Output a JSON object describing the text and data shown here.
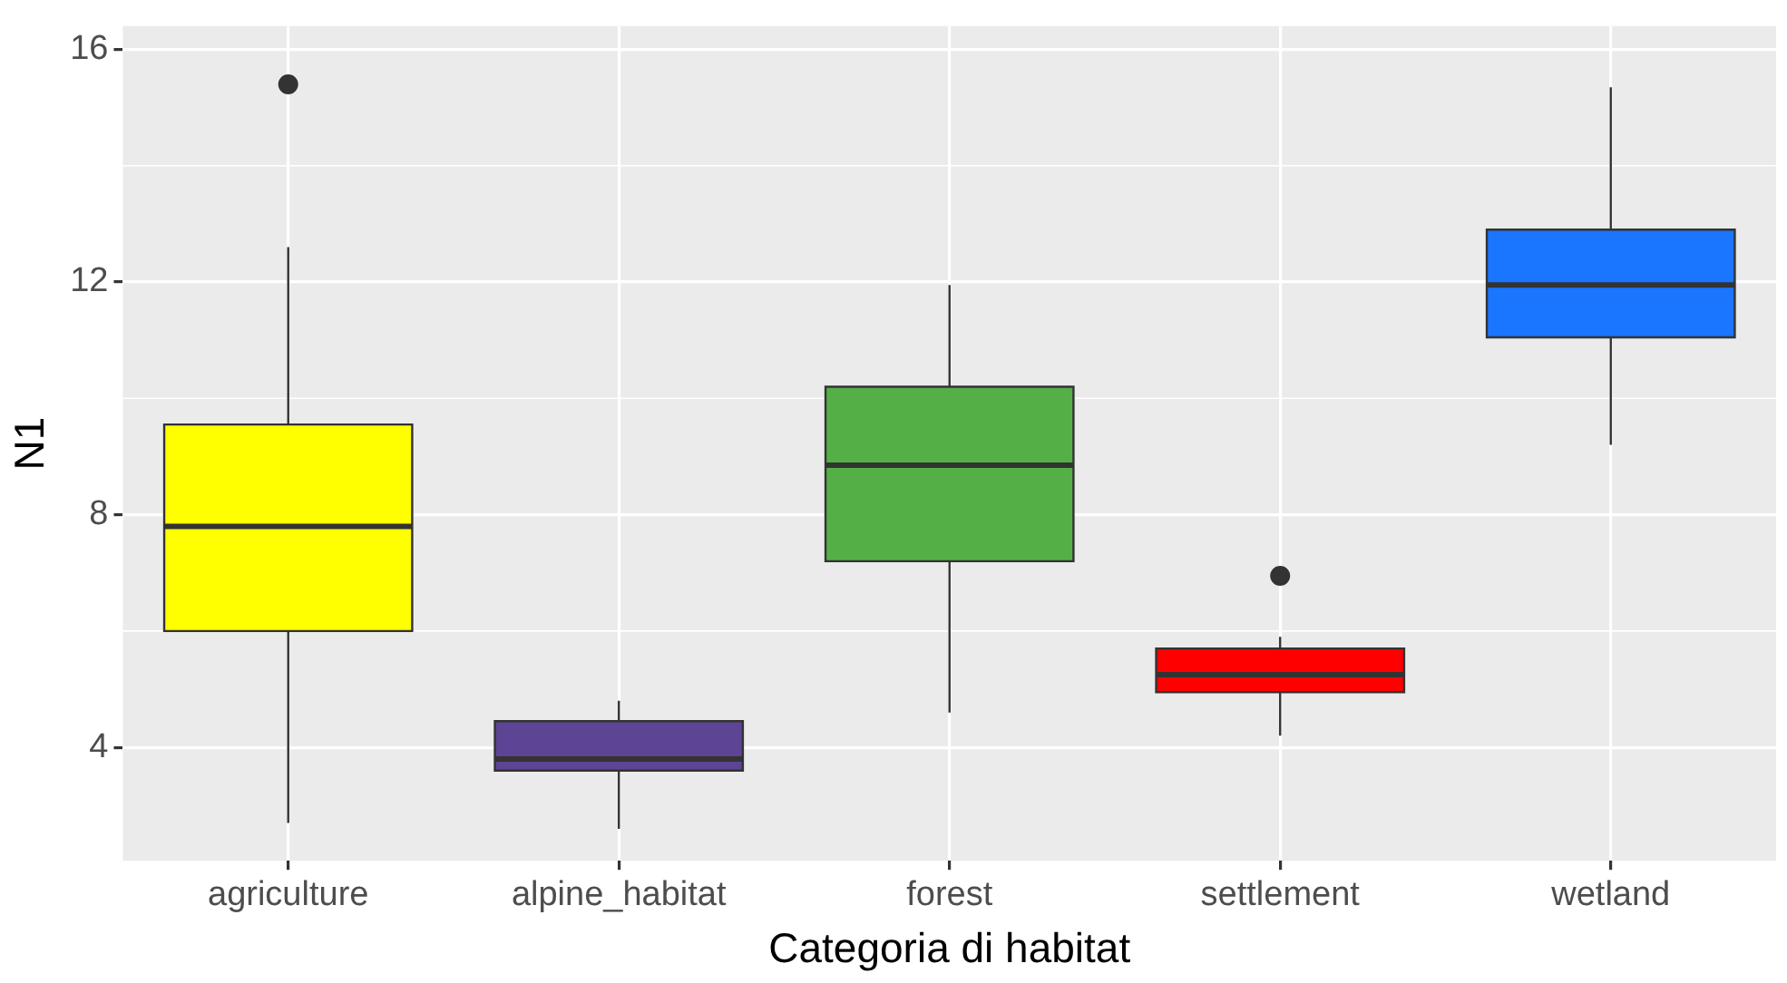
{
  "chart_data": {
    "type": "box",
    "xlabel": "Categoria di habitat",
    "ylabel": "N1",
    "categories": [
      "agriculture",
      "alpine_habitat",
      "forest",
      "settlement",
      "wetland"
    ],
    "colors": [
      "#ffff00",
      "#5e4494",
      "#54b046",
      "#ff0000",
      "#1a75ff"
    ],
    "boxes": [
      {
        "low": 2.7,
        "q1": 6.0,
        "median": 7.8,
        "q3": 9.55,
        "high": 12.6,
        "outliers": [
          15.4
        ]
      },
      {
        "low": 2.6,
        "q1": 3.6,
        "median": 3.8,
        "q3": 4.45,
        "high": 4.8
      },
      {
        "low": 4.6,
        "q1": 7.2,
        "median": 8.85,
        "q3": 10.2,
        "high": 11.95
      },
      {
        "low": 4.2,
        "q1": 4.95,
        "median": 5.25,
        "q3": 5.7,
        "high": 5.9,
        "outliers": [
          6.95
        ]
      },
      {
        "low": 9.2,
        "q1": 11.05,
        "median": 11.95,
        "q3": 12.9,
        "high": 15.35
      }
    ],
    "ylim": [
      2.05,
      16.4
    ],
    "yticks": [
      4,
      8,
      12,
      16
    ],
    "grid": true,
    "legend": false
  }
}
